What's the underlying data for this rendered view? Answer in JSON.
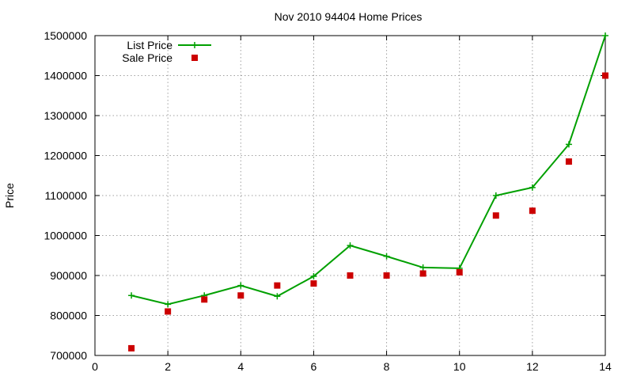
{
  "chart_data": {
    "type": "line",
    "title": "Nov 2010 94404 Home Prices",
    "xlabel": "",
    "ylabel": "Price",
    "xlim": [
      0,
      14
    ],
    "ylim": [
      700000,
      1500000
    ],
    "xticks": [
      0,
      2,
      4,
      6,
      8,
      10,
      12,
      14
    ],
    "yticks": [
      700000,
      800000,
      900000,
      1000000,
      1100000,
      1200000,
      1300000,
      1400000,
      1500000
    ],
    "grid": true,
    "legend_position": "top-left",
    "series": [
      {
        "name": "List Price",
        "style": "line-with-plus-markers",
        "color": "#00a000",
        "x": [
          1,
          2,
          3,
          4,
          5,
          6,
          7,
          8,
          9,
          10,
          11,
          12,
          13,
          14
        ],
        "y": [
          850000,
          828000,
          850000,
          875000,
          848000,
          898000,
          975000,
          948000,
          920000,
          918000,
          1100000,
          1120000,
          1228000,
          1500000
        ]
      },
      {
        "name": "Sale Price",
        "style": "square-markers",
        "color": "#cc0000",
        "x": [
          1,
          2,
          3,
          4,
          5,
          6,
          7,
          8,
          9,
          10,
          11,
          12,
          13,
          14
        ],
        "y": [
          718000,
          810000,
          840000,
          850000,
          875000,
          880000,
          900000,
          900000,
          905000,
          908000,
          1050000,
          1062000,
          1185000,
          1400000
        ]
      }
    ]
  }
}
